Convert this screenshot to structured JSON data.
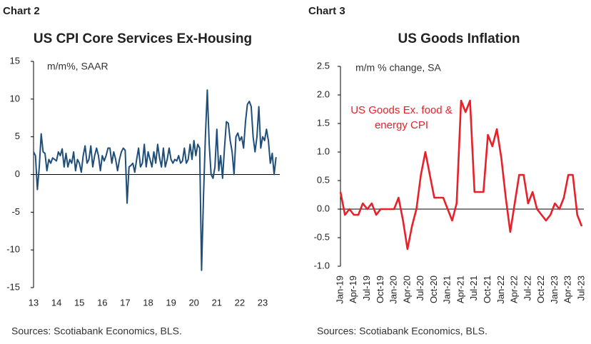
{
  "chart_data": [
    {
      "type": "line",
      "label": "Chart 2",
      "title": "US CPI Core Services Ex-Housing",
      "annotation": "m/m%, SAAR",
      "source": "Sources: Scotiabank Economics, BLS.",
      "categories": [
        "13",
        null,
        null,
        null,
        null,
        null,
        null,
        null,
        null,
        null,
        null,
        null,
        "14",
        null,
        null,
        null,
        null,
        null,
        null,
        null,
        null,
        null,
        null,
        null,
        "15",
        null,
        null,
        null,
        null,
        null,
        null,
        null,
        null,
        null,
        null,
        null,
        "16",
        null,
        null,
        null,
        null,
        null,
        null,
        null,
        null,
        null,
        null,
        null,
        "17",
        null,
        null,
        null,
        null,
        null,
        null,
        null,
        null,
        null,
        null,
        null,
        "18",
        null,
        null,
        null,
        null,
        null,
        null,
        null,
        null,
        null,
        null,
        null,
        "19",
        null,
        null,
        null,
        null,
        null,
        null,
        null,
        null,
        null,
        null,
        null,
        "20",
        null,
        null,
        null,
        null,
        null,
        null,
        null,
        null,
        null,
        null,
        null,
        "21",
        null,
        null,
        null,
        null,
        null,
        null,
        null,
        null,
        null,
        null,
        null,
        "22",
        null,
        null,
        null,
        null,
        null,
        null,
        null,
        null,
        null,
        null,
        null,
        "23",
        null,
        null,
        null,
        null,
        null,
        null,
        null
      ],
      "series": [
        {
          "color": "#1f4e79",
          "values": [
            3,
            2.5,
            -2,
            1,
            5.4,
            3,
            2.8,
            0.5,
            2,
            1.5,
            2.2,
            2,
            1.8,
            3,
            2.5,
            3.4,
            1,
            2.8,
            1,
            2,
            1.5,
            3,
            0.5,
            2,
            1.5,
            0.3,
            2.5,
            3.8,
            1.5,
            2,
            3.8,
            1,
            2.5,
            3.5,
            2.5,
            0.5,
            2.5,
            1.8,
            2.5,
            3.5,
            3.5,
            1.5,
            3,
            2,
            0.5,
            2,
            3,
            3.5,
            3.2,
            -3.8,
            1,
            1.2,
            1.5,
            0.3,
            2,
            3.5,
            1,
            1.5,
            4,
            1,
            3,
            2,
            1,
            3,
            1.5,
            4,
            2.2,
            1,
            3.5,
            1,
            2,
            3.5,
            2,
            1.5,
            2,
            1.8,
            2.5,
            1.5,
            1.8,
            3.5,
            1.5,
            2,
            4,
            2,
            4.5,
            2.5,
            4,
            3.5,
            -12.7,
            -3,
            5,
            11.2,
            4,
            0,
            -0.5,
            1,
            6,
            0.5,
            2.5,
            -0.5,
            3.5,
            7,
            6.8,
            4.5,
            3,
            0,
            5,
            5.5,
            4.5,
            5,
            3.5,
            7,
            9.3,
            9.7,
            9,
            5,
            3,
            5,
            9,
            3.5,
            5,
            4.5,
            6,
            4.5,
            1.5,
            2.8,
            0,
            2.3
          ]
        }
      ],
      "ylim": [
        -15,
        15
      ],
      "yticks": [
        15,
        10,
        5,
        0,
        -5,
        -10,
        -15
      ]
    },
    {
      "type": "line",
      "label": "Chart 3",
      "title": "US Goods Inflation",
      "annotation": "m/m % change, SA",
      "source": "Sources: Scotiabank Economics, BLS.",
      "categories": [
        "Jan-19",
        null,
        null,
        "Apr-19",
        null,
        null,
        "Jul-19",
        null,
        null,
        "Oct-19",
        null,
        null,
        "Jan-20",
        null,
        null,
        "Apr-20",
        null,
        null,
        "Jul-20",
        null,
        null,
        "Oct-20",
        null,
        null,
        "Jan-21",
        null,
        null,
        "Apr-21",
        null,
        null,
        "Jul-21",
        null,
        null,
        "Oct-21",
        null,
        null,
        "Jan-22",
        null,
        null,
        "Apr-22",
        null,
        null,
        "Jul-22",
        null,
        null,
        "Oct-22",
        null,
        null,
        "Jan-23",
        null,
        null,
        "Apr-23",
        null,
        null,
        "Jul-23"
      ],
      "series": [
        {
          "name": "US Goods Ex. food & energy CPI",
          "color": "#e8202a",
          "values": [
            0.3,
            -0.1,
            0,
            -0.1,
            -0.1,
            0.1,
            0,
            0.1,
            -0.1,
            0,
            0,
            0,
            0,
            0.2,
            -0.2,
            -0.7,
            -0.3,
            0,
            0.6,
            1.0,
            0.6,
            0.2,
            0.2,
            0.2,
            0,
            -0.2,
            0.1,
            1.9,
            1.7,
            1.9,
            0.3,
            0.3,
            0.3,
            1.3,
            1.1,
            1.4,
            0.9,
            0.2,
            -0.4,
            0.1,
            0.6,
            0.6,
            0.1,
            0.3,
            0,
            -0.1,
            -0.2,
            -0.1,
            0.1,
            0,
            0.2,
            0.6,
            0.6,
            -0.1,
            -0.3
          ]
        }
      ],
      "ylim": [
        -1,
        2.5
      ],
      "yticks": [
        2.5,
        {
          "value": 2,
          "label": "2.0"
        },
        1.5,
        {
          "value": 1,
          "label": "1.0"
        },
        0.5,
        {
          "value": 0,
          "label": "0.0"
        },
        -0.5,
        {
          "value": -1,
          "label": "-1.0"
        }
      ]
    }
  ]
}
